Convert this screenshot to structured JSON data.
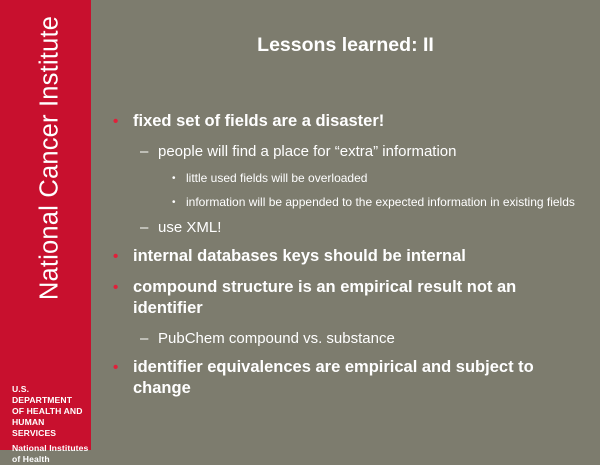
{
  "sidebar": {
    "institute": "National Cancer Institute",
    "dept_lines": [
      "U.S. DEPARTMENT",
      "OF HEALTH AND",
      "HUMAN SERVICES"
    ],
    "nih_lines": [
      "National Institutes",
      "of Health"
    ]
  },
  "slide": {
    "title": "Lessons learned: II",
    "bullets": [
      {
        "level": 1,
        "text": "fixed set of fields are a disaster!"
      },
      {
        "level": 2,
        "text": "people will find a place for “extra” information"
      },
      {
        "level": 3,
        "text": "little used fields will be overloaded"
      },
      {
        "level": 3,
        "text": "information will be appended to the expected information in existing fields"
      },
      {
        "level": 2,
        "text": "use XML!"
      },
      {
        "level": 1,
        "text": "internal databases keys should be internal"
      },
      {
        "level": 1,
        "text": "compound structure is an empirical result not an identifier"
      },
      {
        "level": 2,
        "text": "PubChem compound vs. substance"
      },
      {
        "level": 1,
        "text": "identifier equivalences are empirical and subject to change"
      }
    ]
  },
  "colors": {
    "sidebar": "#c8102e",
    "background": "#7d7c6e",
    "bullet": "#e0203a",
    "text": "#ffffff"
  }
}
